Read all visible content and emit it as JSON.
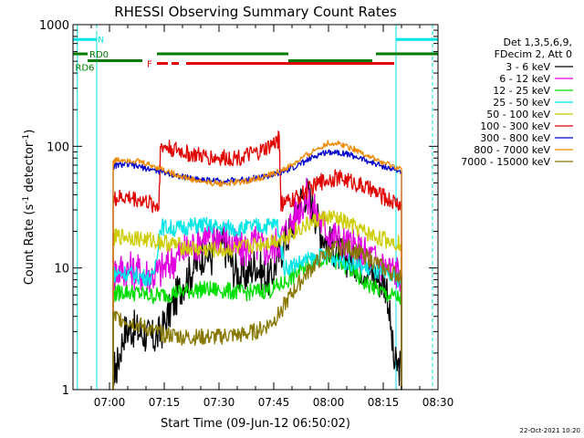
{
  "chart_data": {
    "type": "line",
    "title": "RHESSI Observing Summary Count Rates",
    "xlabel": "Start Time (09-Jun-12 06:50:02)",
    "ylabel_main": "Count Rate (s",
    "ylabel_sup1": "-1",
    "ylabel_mid": " detector",
    "ylabel_sup2": "-1",
    "ylabel_end": ")",
    "yscale": "log",
    "ylim": [
      1,
      1000
    ],
    "xlim_minutes": [
      0,
      100
    ],
    "x_ticks": [
      {
        "label": "07:00",
        "min": 10
      },
      {
        "label": "07:15",
        "min": 25
      },
      {
        "label": "07:30",
        "min": 40
      },
      {
        "label": "07:45",
        "min": 55
      },
      {
        "label": "08:00",
        "min": 70
      },
      {
        "label": "08:15",
        "min": 85
      },
      {
        "label": "08:30",
        "min": 100
      }
    ],
    "y_ticks": [
      {
        "label": "1",
        "value": 1
      },
      {
        "label": "10",
        "value": 10
      },
      {
        "label": "100",
        "value": 100
      },
      {
        "label": "1000",
        "value": 1000
      }
    ],
    "legend_header": [
      "Det 1,3,5,6,9,",
      "FDecim 2, Att 0"
    ],
    "legend_position": "right",
    "night_intervals": [
      [
        0,
        6.5
      ],
      [
        88.5,
        100
      ]
    ],
    "night_start_marker": 1.2,
    "day_end_marker": 98.5,
    "flags": [
      {
        "label": "N",
        "color": "#00e5e5",
        "segments": [
          [
            0,
            6.5
          ],
          [
            88.5,
            100
          ]
        ],
        "level": 755
      },
      {
        "label": "F",
        "color": "#e00000",
        "segments": [
          [
            23,
            26
          ],
          [
            27,
            29
          ],
          [
            31,
            88
          ]
        ],
        "level": 480,
        "dashed_until": 29
      },
      {
        "label": "RD0",
        "color": "#007a00",
        "segments": [
          [
            0,
            4
          ],
          [
            23,
            59
          ],
          [
            83,
            100
          ]
        ],
        "level": 575
      },
      {
        "label": "RD6",
        "color": "#007a00",
        "segments": [
          [
            4,
            19
          ],
          [
            59,
            82
          ]
        ],
        "level": 505
      }
    ],
    "series": [
      {
        "name": "3 - 6 keV",
        "color": "#000000",
        "x": [
          11,
          12,
          14,
          16,
          18,
          20,
          22,
          24,
          26,
          28,
          30,
          32,
          34,
          36,
          38,
          40,
          42,
          44,
          46,
          48,
          50,
          52,
          54,
          56,
          58,
          60,
          62,
          64,
          66,
          68,
          70,
          72,
          74,
          76,
          78,
          80,
          82,
          84,
          86,
          88,
          90
        ],
        "y": [
          1.5,
          1.5,
          3.0,
          3.2,
          3.0,
          2.8,
          2.6,
          2.9,
          4.0,
          5.5,
          7.5,
          9.0,
          11.0,
          13.5,
          12.0,
          17.0,
          14.0,
          10.0,
          8.5,
          9.0,
          11.0,
          9.0,
          8.0,
          12.0,
          16.0,
          22.0,
          35.0,
          42.0,
          30.0,
          20.0,
          16.0,
          14.0,
          12.0,
          12.0,
          11.0,
          10.0,
          9.0,
          8.0,
          7.0,
          1.6,
          1.5
        ]
      },
      {
        "name": "6 - 12 keV",
        "color": "#e000e0",
        "x": [
          11,
          12,
          14,
          16,
          18,
          20,
          22,
          24,
          26,
          28,
          30,
          32,
          34,
          36,
          38,
          40,
          42,
          44,
          46,
          48,
          50,
          52,
          54,
          56,
          58,
          60,
          62,
          64,
          66,
          68,
          70,
          72,
          74,
          76,
          78,
          80,
          82,
          84,
          86,
          88,
          90
        ],
        "y": [
          9.0,
          9.5,
          9.8,
          9.6,
          9.3,
          9.0,
          8.8,
          9.5,
          10.5,
          12.0,
          13.5,
          14.5,
          16.0,
          18.0,
          17.0,
          19.0,
          18.0,
          15.0,
          14.0,
          14.5,
          16.0,
          14.5,
          14.0,
          16.0,
          19.0,
          24.0,
          32.0,
          38.0,
          30.0,
          24.0,
          20.0,
          18.0,
          16.0,
          15.0,
          14.0,
          13.0,
          12.0,
          11.0,
          10.0,
          9.5,
          9.0
        ]
      },
      {
        "name": "12 - 25 keV",
        "color": "#00dd00",
        "x": [
          11,
          12,
          14,
          16,
          18,
          20,
          22,
          24,
          26,
          28,
          30,
          32,
          34,
          36,
          38,
          40,
          42,
          44,
          46,
          48,
          50,
          52,
          54,
          56,
          58,
          60,
          62,
          64,
          66,
          68,
          70,
          72,
          74,
          76,
          78,
          80,
          82,
          84,
          86,
          88,
          90
        ],
        "y": [
          6.0,
          6.2,
          6.4,
          6.3,
          6.2,
          6.0,
          5.9,
          6.0,
          6.1,
          6.3,
          6.4,
          6.5,
          6.6,
          6.7,
          6.6,
          6.6,
          6.5,
          6.4,
          6.3,
          6.3,
          6.4,
          6.5,
          6.6,
          7.0,
          7.6,
          8.4,
          9.5,
          10.8,
          11.5,
          12.0,
          12.0,
          11.5,
          10.5,
          9.5,
          8.5,
          7.5,
          7.0,
          6.5,
          6.0,
          5.8,
          5.6
        ]
      },
      {
        "name": "25 - 50 keV",
        "color": "#00e5e5",
        "x": [
          11,
          12,
          14,
          16,
          18,
          20,
          22,
          24,
          26,
          28,
          30,
          32,
          34,
          36,
          38,
          40,
          42,
          44,
          46,
          48,
          50,
          52,
          54,
          56,
          58,
          60,
          62,
          64,
          66,
          68,
          70,
          72,
          74,
          76,
          78,
          80,
          82,
          84,
          86,
          88,
          90
        ],
        "y": [
          8.8,
          9.0,
          9.1,
          8.9,
          8.6,
          8.4,
          8.2,
          22.0,
          21.5,
          21.0,
          21.5,
          22.0,
          22.5,
          22.5,
          22.0,
          21.5,
          21.5,
          21.0,
          21.0,
          21.5,
          22.0,
          22.0,
          22.5,
          23.0,
          10.0,
          10.5,
          11.0,
          11.5,
          12.0,
          12.5,
          12.5,
          12.0,
          11.5,
          11.0,
          10.5,
          10.0,
          9.5,
          9.0,
          8.5,
          8.3,
          8.0
        ]
      },
      {
        "name": "50 - 100 keV",
        "color": "#cccc00",
        "x": [
          11,
          12,
          14,
          16,
          18,
          20,
          22,
          24,
          26,
          28,
          30,
          32,
          34,
          36,
          38,
          40,
          42,
          44,
          46,
          48,
          50,
          52,
          54,
          56,
          58,
          60,
          62,
          64,
          66,
          68,
          70,
          72,
          74,
          76,
          78,
          80,
          82,
          84,
          86,
          88,
          90
        ],
        "y": [
          17.5,
          18.0,
          18.2,
          18.0,
          17.5,
          17.0,
          16.8,
          16.5,
          16.0,
          15.5,
          15.0,
          14.5,
          14.2,
          14.0,
          14.0,
          14.0,
          14.0,
          14.2,
          14.5,
          15.0,
          15.5,
          16.0,
          16.5,
          17.0,
          18.0,
          19.5,
          21.0,
          22.5,
          24.0,
          25.5,
          26.0,
          25.5,
          24.0,
          22.5,
          21.0,
          19.5,
          18.5,
          17.5,
          17.0,
          16.5,
          16.0
        ]
      },
      {
        "name": "100 - 300 keV",
        "color": "#e00000",
        "x": [
          11,
          12,
          14,
          16,
          18,
          20,
          22,
          23.5,
          24,
          26,
          28,
          30,
          32,
          34,
          36,
          38,
          40,
          42,
          44,
          46,
          48,
          50,
          52,
          54,
          56,
          56.5,
          57,
          58,
          60,
          62,
          64,
          66,
          68,
          70,
          72,
          74,
          76,
          78,
          80,
          82,
          84,
          86,
          88,
          90
        ],
        "y": [
          36.0,
          37.0,
          38.0,
          37.5,
          36.5,
          35.0,
          33.0,
          32.0,
          100.0,
          98.0,
          94.0,
          90.0,
          86.0,
          84.0,
          82.0,
          81.0,
          80.0,
          80.0,
          81.0,
          82.0,
          84.0,
          87.0,
          92.0,
          100.0,
          110.0,
          118.0,
          33.0,
          34.0,
          36.0,
          39.0,
          43.0,
          47.0,
          51.0,
          54.0,
          55.0,
          54.0,
          52.0,
          49.0,
          46.0,
          43.0,
          40.0,
          37.0,
          35.0,
          33.0
        ]
      },
      {
        "name": "300 - 800 keV",
        "color": "#0000cc",
        "x": [
          11,
          12,
          14,
          16,
          18,
          20,
          22,
          24,
          26,
          28,
          30,
          32,
          34,
          36,
          38,
          40,
          42,
          44,
          46,
          48,
          50,
          52,
          54,
          56,
          58,
          60,
          62,
          64,
          66,
          68,
          70,
          72,
          74,
          76,
          78,
          80,
          82,
          84,
          86,
          88,
          90
        ],
        "y": [
          68.0,
          70.0,
          71.0,
          70.0,
          68.0,
          66.0,
          64.0,
          62.0,
          60.0,
          58.0,
          56.0,
          55.0,
          54.0,
          53.0,
          52.5,
          52.0,
          52.0,
          52.5,
          53.0,
          54.0,
          55.0,
          56.0,
          57.0,
          59.0,
          62.0,
          66.0,
          71.0,
          76.0,
          82.0,
          87.0,
          90.0,
          90.0,
          88.0,
          85.0,
          81.0,
          77.0,
          73.0,
          70.0,
          67.0,
          64.0,
          62.0
        ]
      },
      {
        "name": "800 - 7000 keV",
        "color": "#ee8800",
        "x": [
          11,
          12,
          14,
          16,
          18,
          20,
          22,
          24,
          26,
          28,
          30,
          32,
          34,
          36,
          38,
          40,
          42,
          44,
          46,
          48,
          50,
          52,
          54,
          56,
          58,
          60,
          62,
          64,
          66,
          68,
          70,
          72,
          74,
          76,
          78,
          80,
          82,
          84,
          86,
          88,
          90
        ],
        "y": [
          75.0,
          77.0,
          78.0,
          77.0,
          75.0,
          72.0,
          69.0,
          66.0,
          62.0,
          59.0,
          56.0,
          54.0,
          52.0,
          51.0,
          50.0,
          49.5,
          49.5,
          50.0,
          51.0,
          52.0,
          54.0,
          56.0,
          58.0,
          61.0,
          65.0,
          70.0,
          77.0,
          84.0,
          92.0,
          100.0,
          106.0,
          106.0,
          103.0,
          98.0,
          92.0,
          86.0,
          80.0,
          75.0,
          71.0,
          68.0,
          65.0
        ]
      },
      {
        "name": "7000 - 15000 keV",
        "color": "#887700",
        "x": [
          11,
          12,
          14,
          16,
          18,
          20,
          22,
          24,
          26,
          28,
          30,
          32,
          34,
          36,
          38,
          40,
          42,
          44,
          46,
          48,
          50,
          52,
          54,
          56,
          58,
          60,
          62,
          64,
          66,
          68,
          70,
          72,
          74,
          76,
          78,
          80,
          82,
          84,
          86,
          88,
          90
        ],
        "y": [
          4.0,
          3.9,
          3.8,
          3.6,
          3.4,
          3.2,
          3.0,
          2.9,
          2.8,
          2.8,
          2.7,
          2.7,
          2.7,
          2.7,
          2.7,
          2.7,
          2.8,
          2.8,
          2.8,
          2.9,
          3.0,
          3.2,
          3.5,
          4.0,
          5.0,
          6.2,
          7.5,
          9.0,
          10.5,
          12.0,
          13.5,
          14.5,
          15.0,
          14.5,
          13.5,
          12.5,
          11.5,
          10.5,
          9.5,
          9.0,
          8.5
        ]
      }
    ]
  },
  "footer": {
    "timestamp": "22-Oct-2021 10:20"
  }
}
